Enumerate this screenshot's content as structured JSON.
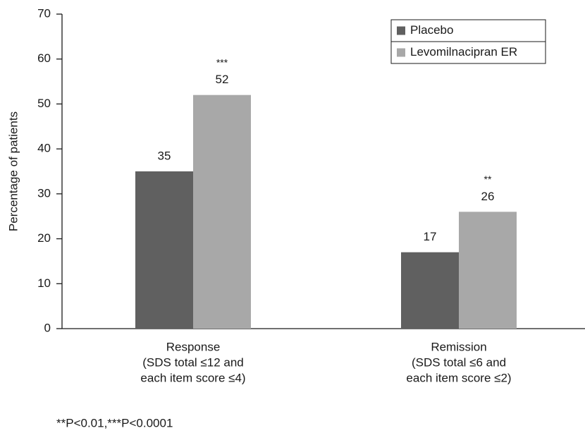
{
  "chart_data": {
    "type": "bar",
    "y_label": "Percentage of patients",
    "categories": [
      [
        "Response",
        "(SDS total ≤12 and",
        "each item score ≤4)"
      ],
      [
        "Remission",
        "(SDS total ≤6 and",
        "each item score ≤2)"
      ]
    ],
    "series": [
      {
        "name": "Placebo",
        "color": "#606060",
        "values": [
          35,
          17
        ]
      },
      {
        "name": "Levomilnacipran ER",
        "color": "#a8a8a8",
        "values": [
          52,
          26
        ],
        "significance": [
          "***",
          "**"
        ]
      }
    ],
    "ylim": [
      0,
      70
    ],
    "yticks": [
      0,
      10,
      20,
      30,
      40,
      50,
      60,
      70
    ],
    "legend": "upper right",
    "footnote": "**P<0.01,***P<0.0001"
  }
}
